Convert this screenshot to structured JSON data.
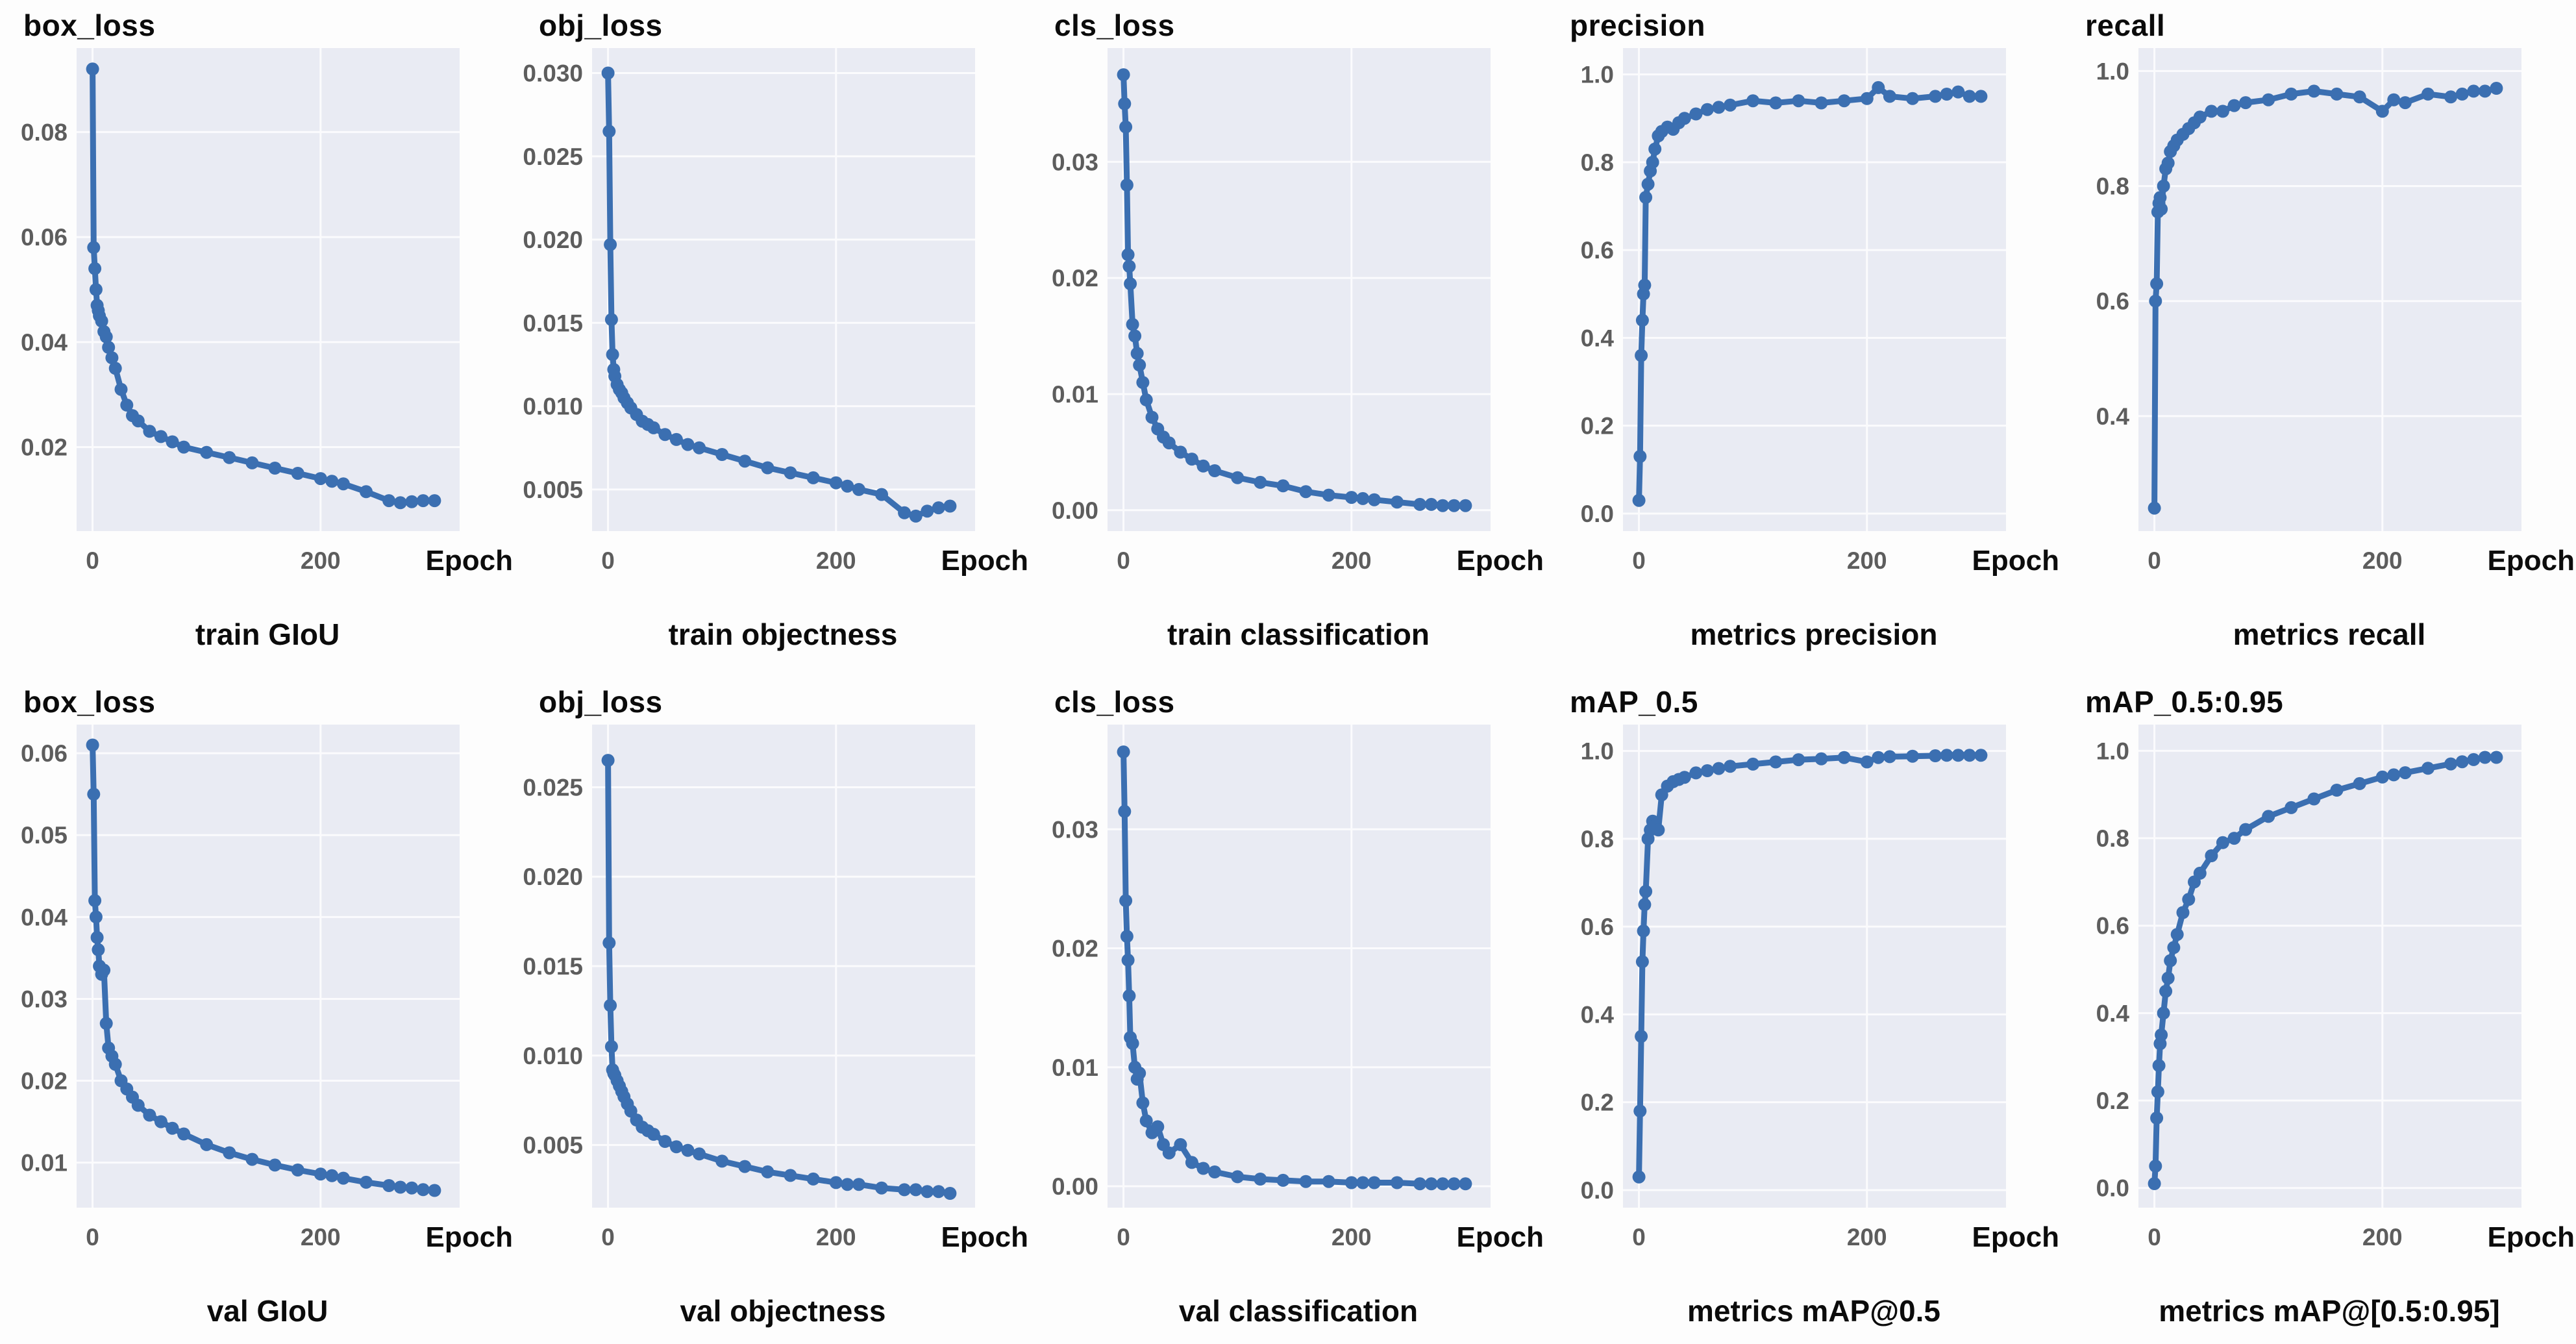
{
  "figure": {
    "line_color": "#3b6fb1",
    "plot_bg": "#e9ebf3",
    "grid_color": "#fbfbfd",
    "tick_color": "#5d5d5d",
    "title_color": "#0b0b0b"
  },
  "chart_data": {
    "type": "line",
    "x_label": "Epoch",
    "legend": "none",
    "grid": true,
    "x_ticks": [
      0,
      200
    ],
    "x_tick_labels": [
      "0",
      "200"
    ],
    "xlim": [
      -14,
      322
    ],
    "x": [
      0,
      1,
      2,
      3,
      4,
      5,
      6,
      8,
      10,
      12,
      14,
      17,
      20,
      25,
      30,
      35,
      40,
      50,
      60,
      70,
      80,
      100,
      120,
      140,
      160,
      180,
      200,
      210,
      220,
      240,
      260,
      270,
      280,
      290,
      300
    ],
    "charts": [
      {
        "title": "box_loss",
        "caption": "train GIoU",
        "ylim": [
          0.004,
          0.096
        ],
        "y_ticks": [
          {
            "v": 0.02,
            "t": "0.02"
          },
          {
            "v": 0.04,
            "t": "0.04"
          },
          {
            "v": 0.06,
            "t": "0.06"
          },
          {
            "v": 0.08,
            "t": "0.08"
          }
        ],
        "values": [
          0.092,
          0.058,
          0.054,
          0.05,
          0.047,
          0.046,
          0.045,
          0.044,
          0.042,
          0.041,
          0.039,
          0.037,
          0.035,
          0.031,
          0.028,
          0.026,
          0.025,
          0.023,
          0.022,
          0.021,
          0.02,
          0.019,
          0.018,
          0.017,
          0.016,
          0.015,
          0.014,
          0.0135,
          0.013,
          0.0115,
          0.0098,
          0.0094,
          0.0096,
          0.0098,
          0.0098
        ]
      },
      {
        "title": "obj_loss",
        "caption": "train objectness",
        "ylim": [
          0.0025,
          0.0315
        ],
        "y_ticks": [
          {
            "v": 0.005,
            "t": "0.005"
          },
          {
            "v": 0.01,
            "t": "0.010"
          },
          {
            "v": 0.015,
            "t": "0.015"
          },
          {
            "v": 0.02,
            "t": "0.020"
          },
          {
            "v": 0.025,
            "t": "0.025"
          },
          {
            "v": 0.03,
            "t": "0.030"
          }
        ],
        "values": [
          0.03,
          0.0265,
          0.0197,
          0.0152,
          0.0131,
          0.0122,
          0.0118,
          0.0113,
          0.011,
          0.0108,
          0.0105,
          0.0102,
          0.0099,
          0.0095,
          0.0091,
          0.0089,
          0.0087,
          0.0083,
          0.008,
          0.0077,
          0.0075,
          0.0071,
          0.0067,
          0.0063,
          0.006,
          0.0057,
          0.0054,
          0.0052,
          0.005,
          0.0047,
          0.0036,
          0.0034,
          0.0037,
          0.0039,
          0.004
        ]
      },
      {
        "title": "cls_loss",
        "caption": "train classification",
        "ylim": [
          -0.0018,
          0.0398
        ],
        "y_ticks": [
          {
            "v": 0.0,
            "t": "0.00"
          },
          {
            "v": 0.01,
            "t": "0.01"
          },
          {
            "v": 0.02,
            "t": "0.02"
          },
          {
            "v": 0.03,
            "t": "0.03"
          }
        ],
        "values": [
          0.0375,
          0.035,
          0.033,
          0.028,
          0.022,
          0.021,
          0.0195,
          0.016,
          0.015,
          0.0135,
          0.0125,
          0.011,
          0.0095,
          0.008,
          0.007,
          0.0063,
          0.0058,
          0.005,
          0.0044,
          0.0038,
          0.0034,
          0.0028,
          0.0024,
          0.0021,
          0.0016,
          0.0013,
          0.0011,
          0.001,
          0.0009,
          0.0007,
          0.0005,
          0.0005,
          0.0004,
          0.0004,
          0.0004
        ]
      },
      {
        "title": "precision",
        "caption": "metrics precision",
        "ylim": [
          -0.04,
          1.06
        ],
        "y_ticks": [
          {
            "v": 0.0,
            "t": "0.0"
          },
          {
            "v": 0.2,
            "t": "0.2"
          },
          {
            "v": 0.4,
            "t": "0.4"
          },
          {
            "v": 0.6,
            "t": "0.6"
          },
          {
            "v": 0.8,
            "t": "0.8"
          },
          {
            "v": 1.0,
            "t": "1.0"
          }
        ],
        "values": [
          0.03,
          0.13,
          0.36,
          0.44,
          0.5,
          0.52,
          0.72,
          0.75,
          0.78,
          0.8,
          0.83,
          0.86,
          0.87,
          0.88,
          0.875,
          0.89,
          0.9,
          0.91,
          0.92,
          0.925,
          0.93,
          0.94,
          0.935,
          0.94,
          0.935,
          0.94,
          0.945,
          0.97,
          0.95,
          0.945,
          0.95,
          0.955,
          0.96,
          0.95,
          0.95
        ]
      },
      {
        "title": "recall",
        "caption": "metrics recall",
        "ylim": [
          0.2,
          1.04
        ],
        "y_ticks": [
          {
            "v": 0.4,
            "t": "0.4"
          },
          {
            "v": 0.6,
            "t": "0.6"
          },
          {
            "v": 0.8,
            "t": "0.8"
          },
          {
            "v": 1.0,
            "t": "1.0"
          }
        ],
        "values": [
          0.24,
          0.6,
          0.63,
          0.755,
          0.77,
          0.78,
          0.76,
          0.8,
          0.83,
          0.84,
          0.86,
          0.87,
          0.88,
          0.89,
          0.9,
          0.91,
          0.92,
          0.93,
          0.93,
          0.94,
          0.945,
          0.95,
          0.96,
          0.965,
          0.96,
          0.955,
          0.93,
          0.95,
          0.945,
          0.96,
          0.955,
          0.96,
          0.965,
          0.965,
          0.97
        ]
      },
      {
        "title": "box_loss",
        "caption": "val GIoU",
        "ylim": [
          0.0045,
          0.0635
        ],
        "y_ticks": [
          {
            "v": 0.01,
            "t": "0.01"
          },
          {
            "v": 0.02,
            "t": "0.02"
          },
          {
            "v": 0.03,
            "t": "0.03"
          },
          {
            "v": 0.04,
            "t": "0.04"
          },
          {
            "v": 0.05,
            "t": "0.05"
          },
          {
            "v": 0.06,
            "t": "0.06"
          }
        ],
        "values": [
          0.061,
          0.055,
          0.042,
          0.04,
          0.0375,
          0.036,
          0.034,
          0.033,
          0.0335,
          0.027,
          0.024,
          0.023,
          0.022,
          0.02,
          0.019,
          0.018,
          0.017,
          0.0158,
          0.015,
          0.0142,
          0.0135,
          0.0122,
          0.0112,
          0.0104,
          0.0097,
          0.0091,
          0.0086,
          0.0084,
          0.0081,
          0.0076,
          0.0072,
          0.007,
          0.0069,
          0.0067,
          0.0066
        ]
      },
      {
        "title": "obj_loss",
        "caption": "val objectness",
        "ylim": [
          0.0015,
          0.0285
        ],
        "y_ticks": [
          {
            "v": 0.005,
            "t": "0.005"
          },
          {
            "v": 0.01,
            "t": "0.010"
          },
          {
            "v": 0.015,
            "t": "0.015"
          },
          {
            "v": 0.02,
            "t": "0.020"
          },
          {
            "v": 0.025,
            "t": "0.025"
          }
        ],
        "values": [
          0.0265,
          0.0163,
          0.0128,
          0.0105,
          0.0092,
          0.009,
          0.0089,
          0.0086,
          0.0083,
          0.008,
          0.0077,
          0.0073,
          0.0069,
          0.0064,
          0.006,
          0.0058,
          0.0056,
          0.0052,
          0.0049,
          0.0047,
          0.0045,
          0.0041,
          0.0038,
          0.0035,
          0.0033,
          0.0031,
          0.0029,
          0.0028,
          0.0028,
          0.0026,
          0.0025,
          0.0025,
          0.0024,
          0.0024,
          0.0023
        ]
      },
      {
        "title": "cls_loss",
        "caption": "val classification",
        "ylim": [
          -0.0018,
          0.0388
        ],
        "y_ticks": [
          {
            "v": 0.0,
            "t": "0.00"
          },
          {
            "v": 0.01,
            "t": "0.01"
          },
          {
            "v": 0.02,
            "t": "0.02"
          },
          {
            "v": 0.03,
            "t": "0.03"
          }
        ],
        "values": [
          0.0365,
          0.0315,
          0.024,
          0.021,
          0.019,
          0.016,
          0.0125,
          0.012,
          0.01,
          0.009,
          0.0095,
          0.007,
          0.0055,
          0.0045,
          0.005,
          0.0035,
          0.0028,
          0.0035,
          0.002,
          0.0015,
          0.0012,
          0.0008,
          0.0006,
          0.0005,
          0.0004,
          0.0004,
          0.0003,
          0.0003,
          0.0003,
          0.0003,
          0.0002,
          0.0002,
          0.0002,
          0.0002,
          0.0002
        ]
      },
      {
        "title": "mAP_0.5",
        "caption": "metrics mAP@0.5",
        "ylim": [
          -0.04,
          1.06
        ],
        "y_ticks": [
          {
            "v": 0.0,
            "t": "0.0"
          },
          {
            "v": 0.2,
            "t": "0.2"
          },
          {
            "v": 0.4,
            "t": "0.4"
          },
          {
            "v": 0.6,
            "t": "0.6"
          },
          {
            "v": 0.8,
            "t": "0.8"
          },
          {
            "v": 1.0,
            "t": "1.0"
          }
        ],
        "values": [
          0.03,
          0.18,
          0.35,
          0.52,
          0.59,
          0.65,
          0.68,
          0.8,
          0.82,
          0.84,
          0.83,
          0.82,
          0.9,
          0.92,
          0.93,
          0.935,
          0.94,
          0.95,
          0.955,
          0.96,
          0.965,
          0.97,
          0.975,
          0.98,
          0.982,
          0.985,
          0.975,
          0.985,
          0.987,
          0.988,
          0.989,
          0.99,
          0.99,
          0.99,
          0.99
        ]
      },
      {
        "title": "mAP_0.5:0.95",
        "caption": "metrics mAP@[0.5:0.95]",
        "ylim": [
          -0.045,
          1.06
        ],
        "y_ticks": [
          {
            "v": 0.0,
            "t": "0.0"
          },
          {
            "v": 0.2,
            "t": "0.2"
          },
          {
            "v": 0.4,
            "t": "0.4"
          },
          {
            "v": 0.6,
            "t": "0.6"
          },
          {
            "v": 0.8,
            "t": "0.8"
          },
          {
            "v": 1.0,
            "t": "1.0"
          }
        ],
        "values": [
          0.01,
          0.05,
          0.16,
          0.22,
          0.28,
          0.33,
          0.35,
          0.4,
          0.45,
          0.48,
          0.52,
          0.55,
          0.58,
          0.63,
          0.66,
          0.7,
          0.72,
          0.76,
          0.79,
          0.8,
          0.82,
          0.85,
          0.87,
          0.89,
          0.91,
          0.925,
          0.94,
          0.945,
          0.95,
          0.96,
          0.97,
          0.975,
          0.98,
          0.985,
          0.985
        ]
      }
    ]
  }
}
